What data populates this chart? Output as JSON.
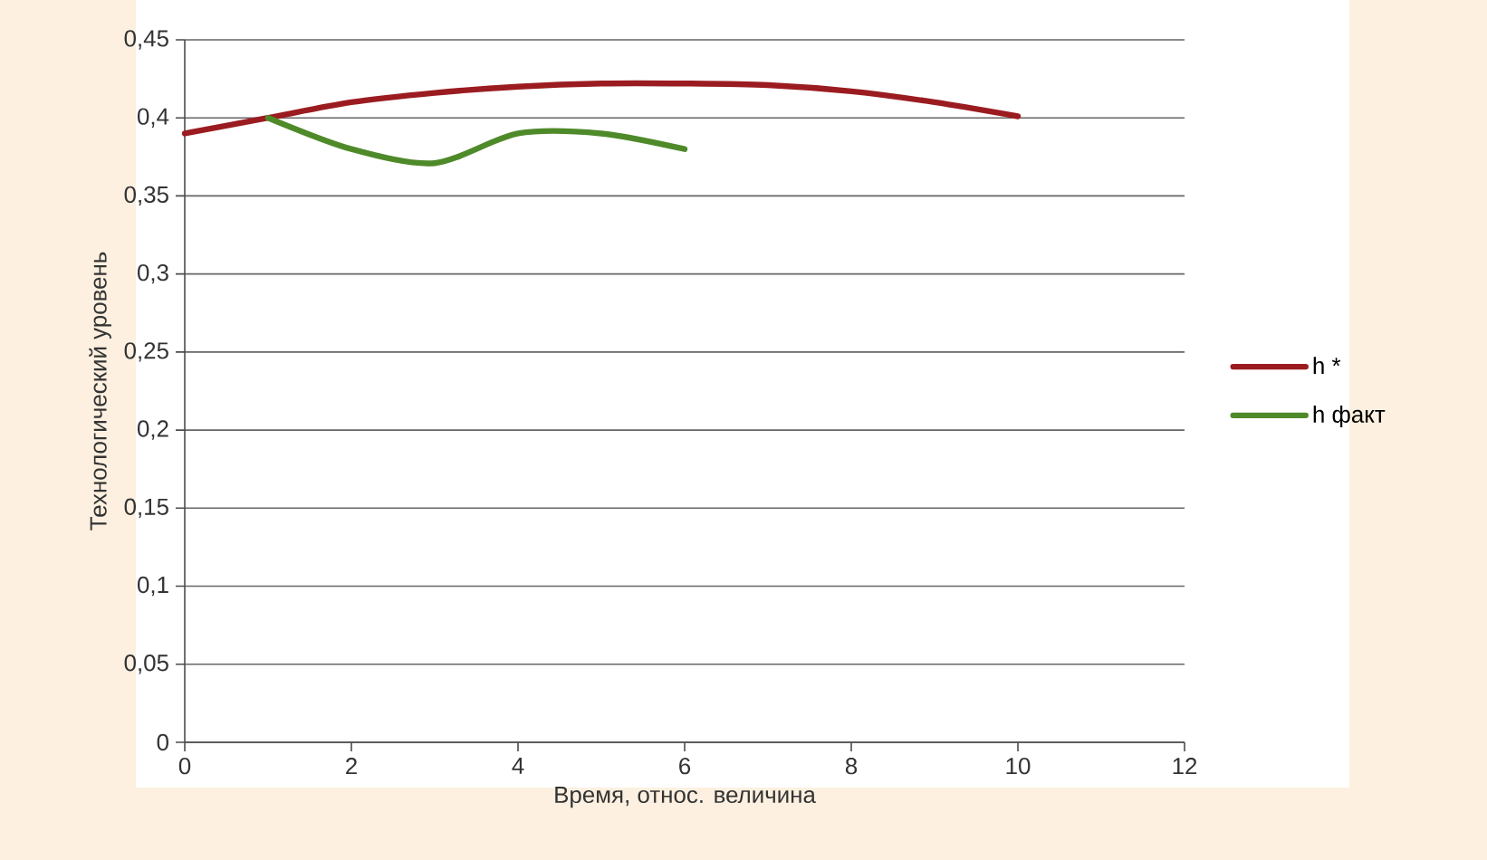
{
  "chart_data": {
    "type": "line",
    "xlabel": "Время, относ. величина",
    "ylabel": "Технологический уровень",
    "xlim": [
      0,
      12
    ],
    "xticks": [
      0,
      2,
      4,
      6,
      8,
      10,
      12
    ],
    "ylim": [
      0,
      0.45
    ],
    "yticks": [
      {
        "value": 0,
        "label": "0"
      },
      {
        "value": 0.05,
        "label": "0,05"
      },
      {
        "value": 0.1,
        "label": "0,1"
      },
      {
        "value": 0.15,
        "label": "0,15"
      },
      {
        "value": 0.2,
        "label": "0,2"
      },
      {
        "value": 0.25,
        "label": "0,25"
      },
      {
        "value": 0.3,
        "label": "0,3"
      },
      {
        "value": 0.35,
        "label": "0,35"
      },
      {
        "value": 0.4,
        "label": "0,4"
      },
      {
        "value": 0.45,
        "label": "0,45"
      }
    ],
    "grid": "y",
    "legend": "right",
    "marker": "none",
    "line_style": "solid",
    "series": [
      {
        "name": "h *",
        "color": "#9b1c20",
        "x": [
          0,
          1,
          2,
          3,
          4,
          5,
          6,
          7,
          8,
          9,
          10
        ],
        "values": [
          0.39,
          0.4,
          0.41,
          0.416,
          0.42,
          0.422,
          0.422,
          0.421,
          0.417,
          0.41,
          0.401
        ]
      },
      {
        "name": "h факт",
        "color": "#4f8a2a",
        "x": [
          1,
          2,
          3,
          4,
          5,
          6
        ],
        "values": [
          0.4,
          0.38,
          0.371,
          0.39,
          0.39,
          0.38
        ]
      }
    ]
  }
}
